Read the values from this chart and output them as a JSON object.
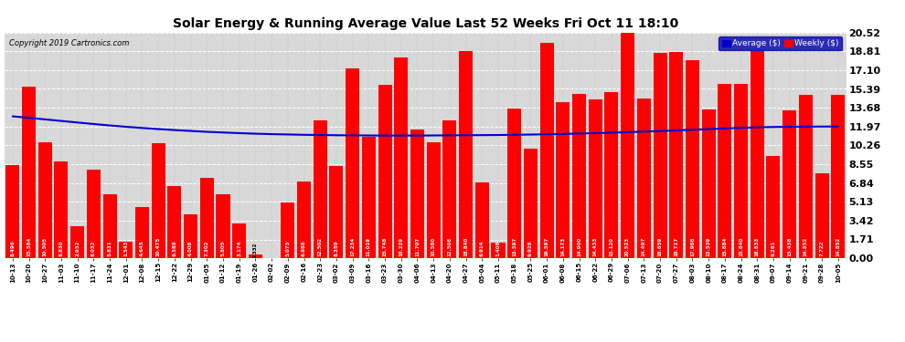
{
  "title": "Solar Energy & Running Average Value Last 52 Weeks Fri Oct 11 18:10",
  "copyright": "Copyright 2019 Cartronics.com",
  "bar_color": "#FF0000",
  "avg_line_color": "#0000CD",
  "background_color": "#FFFFFF",
  "plot_bg_color": "#D8D8D8",
  "grid_color": "#888888",
  "yticks": [
    0.0,
    1.71,
    3.42,
    5.13,
    6.84,
    8.55,
    10.26,
    11.97,
    13.68,
    15.39,
    17.1,
    18.81,
    20.52
  ],
  "categories": [
    "10-13",
    "10-20",
    "10-27",
    "11-03",
    "11-10",
    "11-17",
    "11-24",
    "12-01",
    "12-08",
    "12-15",
    "12-22",
    "12-29",
    "01-05",
    "01-12",
    "01-19",
    "01-26",
    "02-02",
    "02-09",
    "02-16",
    "02-23",
    "03-02",
    "03-09",
    "03-16",
    "03-23",
    "03-30",
    "04-06",
    "04-13",
    "04-20",
    "04-27",
    "05-04",
    "05-11",
    "05-18",
    "05-25",
    "06-01",
    "06-08",
    "06-15",
    "06-22",
    "06-29",
    "07-06",
    "07-13",
    "07-20",
    "07-27",
    "08-03",
    "08-10",
    "08-17",
    "08-24",
    "08-31",
    "09-07",
    "09-14",
    "09-21",
    "09-28",
    "10-05"
  ],
  "values": [
    8.496,
    15.584,
    10.505,
    8.83,
    2.932,
    8.032,
    5.831,
    1.543,
    4.645,
    10.475,
    6.588,
    4.008,
    7.302,
    5.805,
    3.174,
    0.332,
    0.0,
    5.075,
    6.988,
    12.502,
    8.359,
    17.234,
    11.019,
    15.748,
    18.229,
    11.707,
    10.58,
    12.508,
    18.84,
    6.914,
    1.408,
    13.597,
    9.928,
    19.597,
    14.173,
    14.9,
    14.433,
    15.12,
    20.523,
    14.497,
    18.659,
    18.717,
    17.988,
    13.539,
    15.884,
    15.84,
    18.833,
    9.261,
    13.438,
    14.852,
    7.722,
    14.852
  ],
  "avg_values": [
    12.9,
    12.76,
    12.62,
    12.48,
    12.34,
    12.2,
    12.07,
    11.95,
    11.84,
    11.74,
    11.65,
    11.57,
    11.49,
    11.43,
    11.37,
    11.32,
    11.28,
    11.25,
    11.22,
    11.2,
    11.18,
    11.17,
    11.16,
    11.15,
    11.15,
    11.15,
    11.16,
    11.17,
    11.18,
    11.19,
    11.2,
    11.22,
    11.24,
    11.27,
    11.3,
    11.33,
    11.37,
    11.41,
    11.46,
    11.51,
    11.56,
    11.62,
    11.68,
    11.74,
    11.8,
    11.85,
    11.9,
    11.93,
    11.95,
    11.96,
    11.97,
    11.97
  ],
  "legend_avg_label": "Average ($)",
  "legend_weekly_label": "Weekly ($)",
  "legend_avg_color": "#0000CC",
  "legend_weekly_color": "#FF0000",
  "legend_bg_color": "#0000AA"
}
